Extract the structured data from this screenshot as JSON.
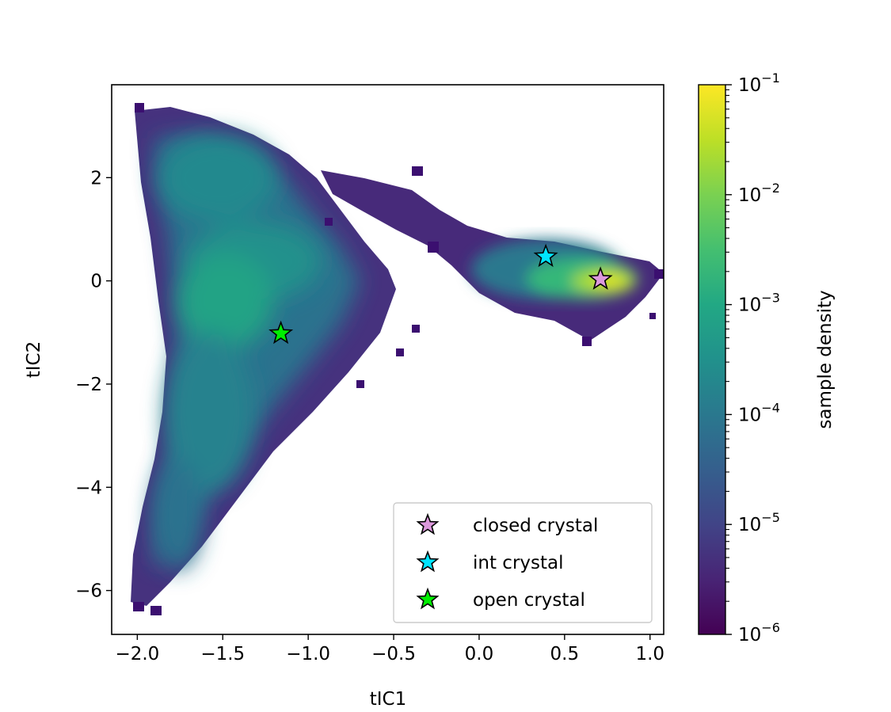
{
  "chart_data": {
    "type": "heatmap",
    "xlabel": "tIC1",
    "ylabel": "tIC2",
    "xlim": [
      -2.15,
      1.08
    ],
    "ylim": [
      -6.85,
      3.8
    ],
    "x_ticks": [
      -2.0,
      -1.5,
      -1.0,
      -0.5,
      0.0,
      0.5,
      1.0
    ],
    "x_tick_labels": [
      "−2.0",
      "−1.5",
      "−1.0",
      "−0.5",
      "0.0",
      "0.5",
      "1.0"
    ],
    "y_ticks": [
      2,
      0,
      -2,
      -4,
      -6
    ],
    "y_tick_labels": [
      "2",
      "0",
      "−2",
      "−4",
      "−6"
    ],
    "colorbar": {
      "label": "sample density",
      "scale": "log",
      "range": [
        1e-06,
        0.1
      ],
      "colormap": "viridis",
      "ticks": [
        {
          "value": 0.1,
          "base": "10",
          "exp": "−1"
        },
        {
          "value": 0.01,
          "base": "10",
          "exp": "−2"
        },
        {
          "value": 0.001,
          "base": "10",
          "exp": "−3"
        },
        {
          "value": 0.0001,
          "base": "10",
          "exp": "−4"
        },
        {
          "value": 1e-05,
          "base": "10",
          "exp": "−5"
        },
        {
          "value": 1e-06,
          "base": "10",
          "exp": "−6"
        }
      ]
    },
    "density_peaks": [
      {
        "x": -1.5,
        "y": 1.9,
        "log_density": -3.3
      },
      {
        "x": -1.2,
        "y": 0.4,
        "log_density": -3.1
      },
      {
        "x": -1.45,
        "y": -0.45,
        "log_density": -3.0
      },
      {
        "x": -1.4,
        "y": -2.8,
        "log_density": -3.7
      },
      {
        "x": 0.72,
        "y": 0.02,
        "log_density": -1.9
      }
    ],
    "series": [
      {
        "name": "closed crystal",
        "x": [
          0.71
        ],
        "y": [
          0.03
        ],
        "marker": "star",
        "color": "#dd99dd"
      },
      {
        "name": "int crystal",
        "x": [
          0.39
        ],
        "y": [
          0.47
        ],
        "marker": "star",
        "color": "#00e5ff"
      },
      {
        "name": "open crystal",
        "x": [
          -1.16
        ],
        "y": [
          -1.02
        ],
        "marker": "star",
        "color": "#00ee00"
      }
    ],
    "legend_position": "lower-right",
    "grid": false
  }
}
